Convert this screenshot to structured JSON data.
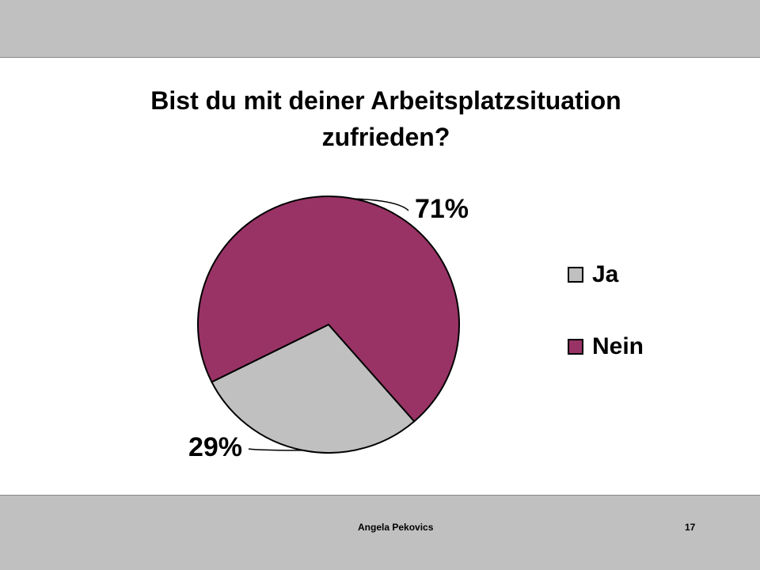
{
  "chart_data": {
    "type": "pie",
    "title": "Bist du mit deiner Arbeitsplatzsituation zufrieden?",
    "categories": [
      "Ja",
      "Nein"
    ],
    "values": [
      29,
      71
    ],
    "value_labels": [
      "29%",
      "71%"
    ],
    "colors": [
      "#c0c0c0",
      "#993366"
    ],
    "legend": "right"
  },
  "footer": {
    "author": "Angela Pekovics",
    "page": "17"
  }
}
